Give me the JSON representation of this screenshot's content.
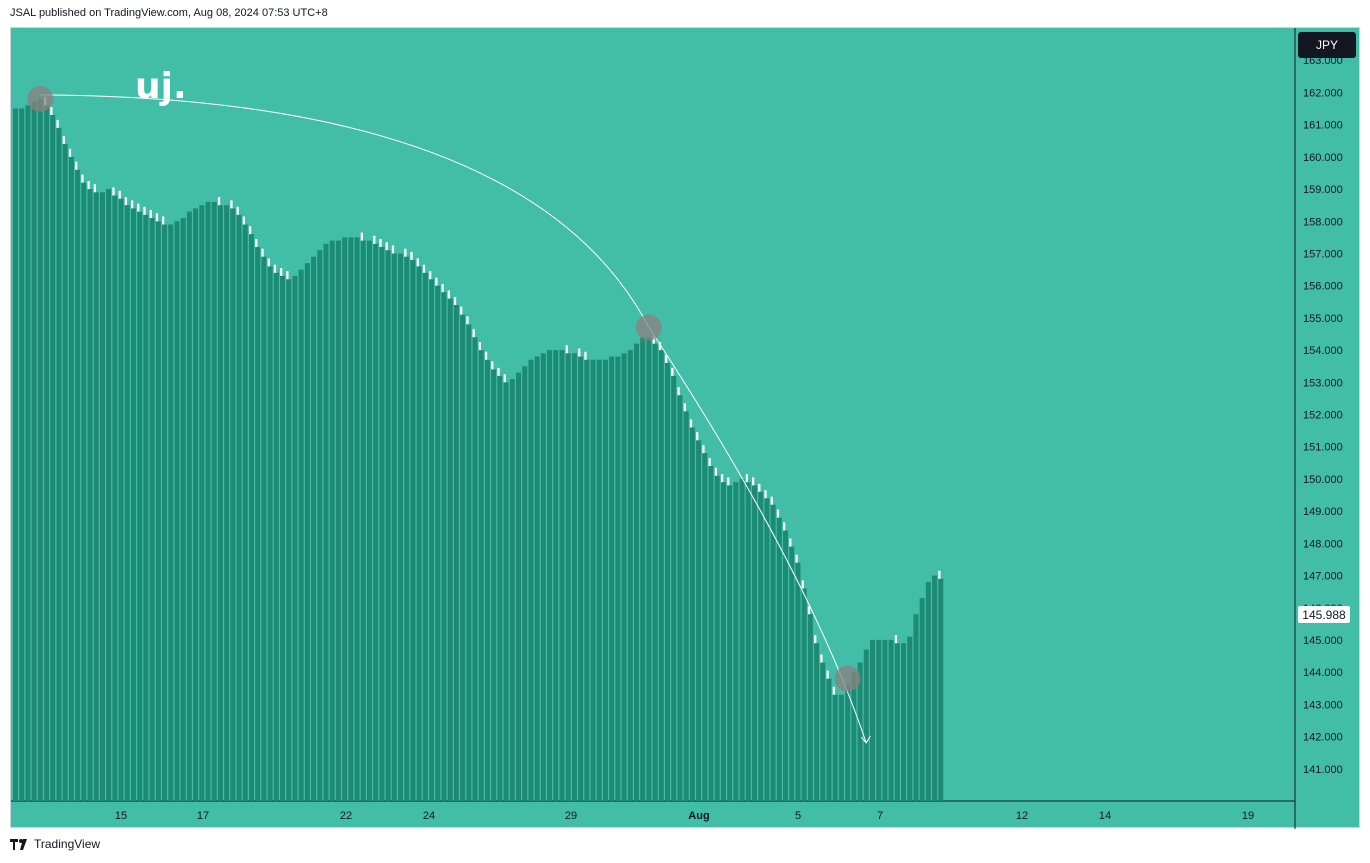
{
  "header": {
    "text": "JSAL published on TradingView.com, Aug 08, 2024 07:53 UTC+8"
  },
  "footer": {
    "logo": "tradingview-logo",
    "text": "TradingView"
  },
  "chart_title": "uj.",
  "currency_button": "JPY",
  "last_price_label": "145.988",
  "colors": {
    "background": "#42bda8",
    "bar": "#1d8a74",
    "bar_cap": "#ffffff",
    "circle": "#8b8080",
    "arc": "#ffffff",
    "axis_text": "#131722"
  },
  "chart_data": {
    "type": "bar",
    "title": "uj.",
    "ylim": [
      140.0,
      164.0
    ],
    "y_ticks": [
      "141.000",
      "142.000",
      "143.000",
      "144.000",
      "145.000",
      "146.000",
      "147.000",
      "148.000",
      "149.000",
      "150.000",
      "151.000",
      "152.000",
      "153.000",
      "154.000",
      "155.000",
      "156.000",
      "157.000",
      "158.000",
      "159.000",
      "160.000",
      "161.000",
      "162.000",
      "163.000"
    ],
    "x_ticks": [
      "15",
      "17",
      "22",
      "24",
      "29",
      "Aug",
      "5",
      "7",
      "12",
      "14",
      "19"
    ],
    "values": [
      161.5,
      161.5,
      161.6,
      161.7,
      161.8,
      161.6,
      161.3,
      160.9,
      160.4,
      160.0,
      159.6,
      159.2,
      159.0,
      158.9,
      158.9,
      159.0,
      158.8,
      158.7,
      158.5,
      158.4,
      158.3,
      158.2,
      158.1,
      158.0,
      157.9,
      157.9,
      158.0,
      158.1,
      158.3,
      158.4,
      158.5,
      158.6,
      158.6,
      158.5,
      158.5,
      158.4,
      158.2,
      157.9,
      157.6,
      157.2,
      156.9,
      156.6,
      156.4,
      156.3,
      156.2,
      156.3,
      156.5,
      156.7,
      156.9,
      157.1,
      157.3,
      157.4,
      157.4,
      157.5,
      157.5,
      157.5,
      157.4,
      157.4,
      157.3,
      157.2,
      157.1,
      157.0,
      157.0,
      156.9,
      156.8,
      156.6,
      156.4,
      156.2,
      156.0,
      155.8,
      155.6,
      155.4,
      155.1,
      154.8,
      154.4,
      154.0,
      153.7,
      153.4,
      153.2,
      153.0,
      153.1,
      153.3,
      153.5,
      153.7,
      153.8,
      153.9,
      154.0,
      154.0,
      154.0,
      153.9,
      153.9,
      153.8,
      153.7,
      153.7,
      153.7,
      153.7,
      153.8,
      153.8,
      153.9,
      154.0,
      154.2,
      154.4,
      154.4,
      154.2,
      154.0,
      153.6,
      153.2,
      152.6,
      152.1,
      151.6,
      151.2,
      150.8,
      150.4,
      150.1,
      149.9,
      149.8,
      149.9,
      150.0,
      149.9,
      149.8,
      149.6,
      149.4,
      149.2,
      148.8,
      148.4,
      147.9,
      147.4,
      146.6,
      145.8,
      144.9,
      144.3,
      143.8,
      143.3,
      143.3,
      143.6,
      144.0,
      144.3,
      144.7,
      145.0,
      145.0,
      145.0,
      145.0,
      144.9,
      144.9,
      145.1,
      145.8,
      146.3,
      146.8,
      147.0,
      146.9
    ],
    "annotations": {
      "arc_points": [
        {
          "index": 4,
          "value": 161.8
        },
        {
          "index": 102,
          "value": 154.7
        },
        {
          "index": 134,
          "value": 143.8
        }
      ],
      "arrow_end": {
        "index": 137,
        "value": 141.8
      },
      "current_price": 145.988
    }
  }
}
